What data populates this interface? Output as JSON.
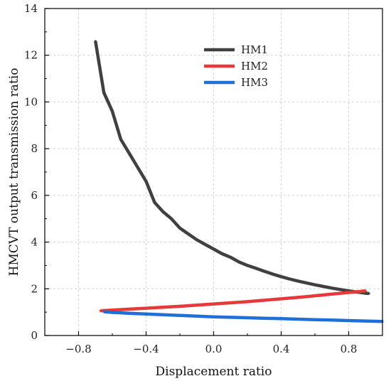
{
  "chart_data": {
    "type": "line",
    "title": "",
    "xlabel": "Displacement ratio",
    "ylabel": "HMCVT output transmission ratio",
    "xlim": [
      -1.0,
      1.0
    ],
    "ylim": [
      0,
      14
    ],
    "xticks": [
      -0.8,
      -0.4,
      0.0,
      0.4,
      0.8
    ],
    "xtick_labels": [
      "−0.8",
      "−0.4",
      "0.0",
      "0.4",
      "0.8"
    ],
    "yticks": [
      0,
      2,
      4,
      6,
      8,
      10,
      12,
      14
    ],
    "ytick_labels": [
      "0",
      "2",
      "4",
      "6",
      "8",
      "10",
      "12",
      "14"
    ],
    "grid": true,
    "legend_position": "top-center",
    "series": [
      {
        "name": "HM1",
        "color": "#404040",
        "x": [
          -0.7,
          -0.65,
          -0.6,
          -0.55,
          -0.5,
          -0.45,
          -0.4,
          -0.35,
          -0.3,
          -0.25,
          -0.2,
          -0.15,
          -0.1,
          -0.05,
          0.0,
          0.05,
          0.1,
          0.15,
          0.2,
          0.25,
          0.3,
          0.35,
          0.4,
          0.45,
          0.5,
          0.55,
          0.6,
          0.65,
          0.7,
          0.75,
          0.8,
          0.85,
          0.9,
          0.92
        ],
        "values": [
          12.6,
          10.4,
          9.6,
          8.4,
          7.8,
          7.2,
          6.6,
          5.7,
          5.3,
          5.0,
          4.6,
          4.35,
          4.1,
          3.9,
          3.7,
          3.5,
          3.35,
          3.15,
          3.0,
          2.88,
          2.75,
          2.63,
          2.52,
          2.42,
          2.33,
          2.25,
          2.17,
          2.1,
          2.03,
          1.97,
          1.91,
          1.86,
          1.81,
          1.8
        ]
      },
      {
        "name": "HM2",
        "color": "#e8393a",
        "x": [
          -0.67,
          -0.6,
          -0.5,
          -0.4,
          -0.3,
          -0.2,
          -0.1,
          0.0,
          0.1,
          0.2,
          0.3,
          0.4,
          0.5,
          0.6,
          0.7,
          0.8,
          0.9
        ],
        "values": [
          1.06,
          1.09,
          1.13,
          1.17,
          1.21,
          1.25,
          1.3,
          1.35,
          1.4,
          1.45,
          1.51,
          1.57,
          1.63,
          1.7,
          1.77,
          1.84,
          1.91
        ]
      },
      {
        "name": "HM3",
        "color": "#1f6fd6",
        "x": [
          -0.65,
          -0.6,
          -0.5,
          -0.4,
          -0.3,
          -0.2,
          -0.1,
          0.0,
          0.1,
          0.2,
          0.3,
          0.4,
          0.5,
          0.6,
          0.7,
          0.8,
          0.9,
          1.0
        ],
        "values": [
          1.02,
          0.99,
          0.95,
          0.92,
          0.89,
          0.86,
          0.83,
          0.8,
          0.78,
          0.76,
          0.74,
          0.72,
          0.7,
          0.68,
          0.66,
          0.64,
          0.62,
          0.6
        ]
      }
    ]
  }
}
